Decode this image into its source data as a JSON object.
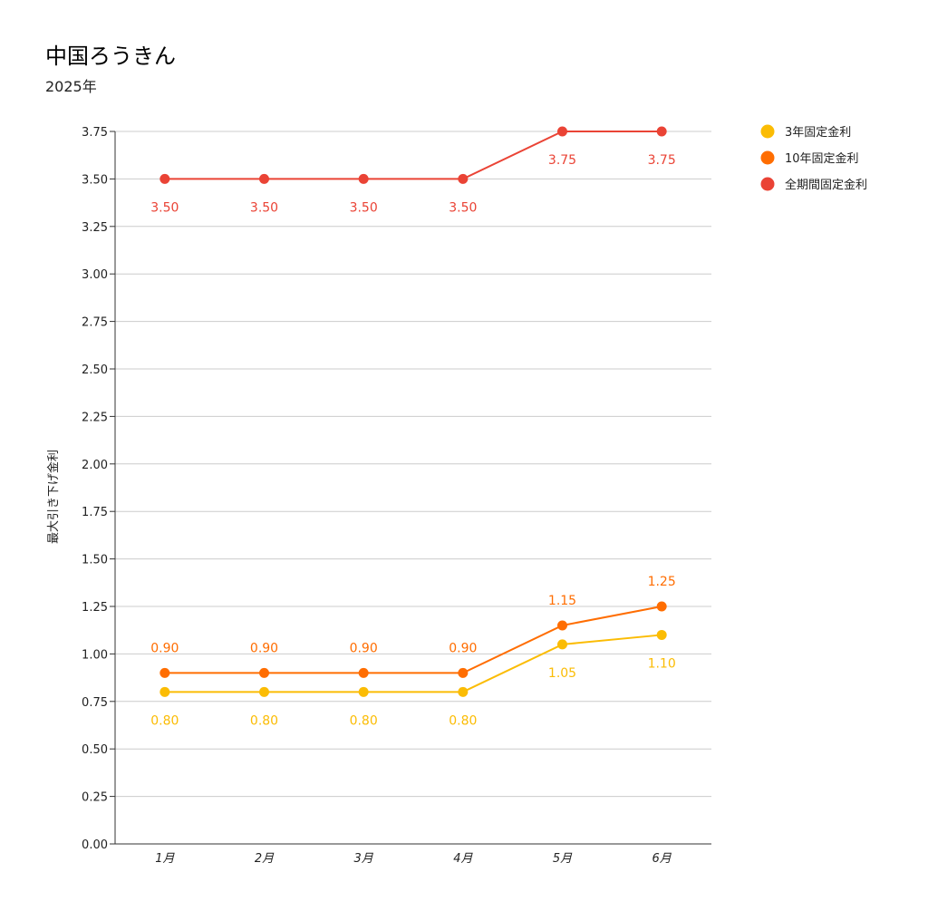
{
  "chart_data": {
    "type": "line",
    "title": "中国ろうきん",
    "subtitle": "2025年",
    "xlabel": "",
    "ylabel": "最大引き下げ金利",
    "categories": [
      "1月",
      "2月",
      "3月",
      "4月",
      "5月",
      "6月"
    ],
    "ylim": [
      0,
      3.75
    ],
    "yticks": [
      "0.00",
      "0.25",
      "0.50",
      "0.75",
      "1.00",
      "1.25",
      "1.50",
      "1.75",
      "2.00",
      "2.25",
      "2.50",
      "2.75",
      "3.00",
      "3.25",
      "3.50",
      "3.75"
    ],
    "grid": true,
    "legend_position": "top-right",
    "series": [
      {
        "name": "3年固定金利",
        "color": "#FBBC04",
        "values": [
          0.8,
          0.8,
          0.8,
          0.8,
          1.05,
          1.1
        ],
        "labels": [
          "0.80",
          "0.80",
          "0.80",
          "0.80",
          "1.05",
          "1.10"
        ]
      },
      {
        "name": "10年固定金利",
        "color": "#FF6D01",
        "values": [
          0.9,
          0.9,
          0.9,
          0.9,
          1.15,
          1.25
        ],
        "labels": [
          "0.90",
          "0.90",
          "0.90",
          "0.90",
          "1.15",
          "1.25"
        ]
      },
      {
        "name": "全期間固定金利",
        "color": "#EA4335",
        "values": [
          3.5,
          3.5,
          3.5,
          3.5,
          3.75,
          3.75
        ],
        "labels": [
          "3.50",
          "3.50",
          "3.50",
          "3.50",
          "3.75",
          "3.75"
        ]
      }
    ]
  }
}
